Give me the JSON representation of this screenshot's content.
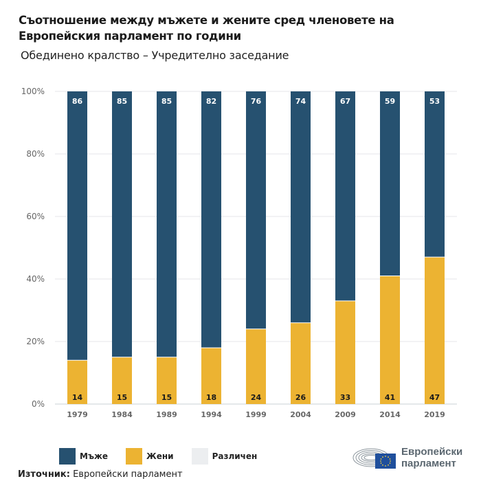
{
  "header": {
    "title": "Съотношение между мъжете и жените сред членовете на Европейския парламент по години",
    "subtitle": "Обединено кралство – Учредително заседание"
  },
  "chart_data": {
    "type": "bar",
    "stacked": true,
    "title": "Съотношение между мъжете и жените сред членовете на Европейския парламент по години",
    "subtitle": "Обединено кралство – Учредително заседание",
    "xlabel": "",
    "ylabel": "",
    "categories": [
      "1979",
      "1984",
      "1989",
      "1994",
      "1999",
      "2004",
      "2009",
      "2014",
      "2019"
    ],
    "series": [
      {
        "name": "Жени",
        "color": "#ecb332",
        "values": [
          14,
          15,
          15,
          18,
          24,
          26,
          33,
          41,
          47
        ]
      },
      {
        "name": "Мъже",
        "color": "#265170",
        "values": [
          86,
          85,
          85,
          82,
          76,
          74,
          67,
          59,
          53
        ]
      },
      {
        "name": "Различен",
        "color": "#eceef0",
        "values": [
          0,
          0,
          0,
          0,
          0,
          0,
          0,
          0,
          0
        ]
      }
    ],
    "ylim": [
      0,
      100
    ],
    "yticks": [
      "0%",
      "20%",
      "40%",
      "60%",
      "80%",
      "100%"
    ],
    "ytick_values": [
      0,
      20,
      40,
      60,
      80,
      100
    ],
    "grid": true,
    "legend": "bottom-left"
  },
  "legend": {
    "items": [
      {
        "label": "Мъже",
        "color": "#265170"
      },
      {
        "label": "Жени",
        "color": "#ecb332"
      },
      {
        "label": "Различен",
        "color": "#eceef0"
      }
    ]
  },
  "footer": {
    "source_label": "Източник:",
    "source_value": "Европейски парламент"
  },
  "logo": {
    "line1": "Европейски",
    "line2": "парламент",
    "icon": "european-parliament-logo-icon"
  }
}
